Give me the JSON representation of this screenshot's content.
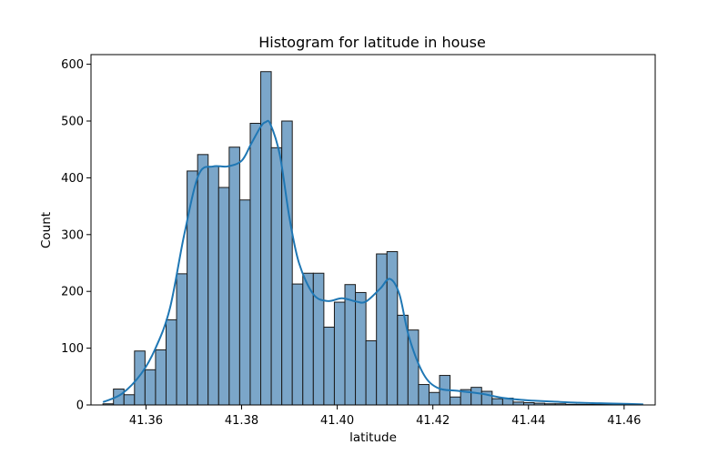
{
  "chart_data": {
    "type": "bar",
    "title": "Histogram for latitude in house",
    "xlabel": "latitude",
    "ylabel": "Count",
    "xlim": [
      41.3485,
      41.4665
    ],
    "ylim": [
      0,
      617
    ],
    "xticks": [
      41.36,
      41.38,
      41.4,
      41.42,
      41.44,
      41.46
    ],
    "xtick_labels": [
      "41.36",
      "41.38",
      "41.40",
      "41.42",
      "41.44",
      "41.46"
    ],
    "yticks": [
      0,
      100,
      200,
      300,
      400,
      500,
      600
    ],
    "ytick_labels": [
      "0",
      "100",
      "200",
      "300",
      "400",
      "500",
      "600"
    ],
    "bin_start": 41.351,
    "bin_width": 0.0022,
    "bar_color": "#7ba6c9",
    "edge_color": "#1a1a1a",
    "kde_color": "#1f77b4",
    "grid": false,
    "legend": "none",
    "values": [
      2,
      28,
      18,
      95,
      62,
      97,
      150,
      231,
      412,
      441,
      420,
      383,
      454,
      361,
      496,
      587,
      453,
      500,
      213,
      232,
      232,
      137,
      181,
      212,
      198,
      113,
      266,
      270,
      158,
      132,
      36,
      22,
      52,
      14,
      27,
      31,
      24,
      11,
      12,
      5,
      4,
      3,
      2,
      2,
      1,
      1,
      1,
      1,
      1,
      1
    ],
    "kde": {
      "x": [
        41.351,
        41.355,
        41.359,
        41.362,
        41.365,
        41.368,
        41.371,
        41.374,
        41.377,
        41.38,
        41.382,
        41.384,
        41.385,
        41.386,
        41.388,
        41.39,
        41.392,
        41.395,
        41.398,
        41.401,
        41.404,
        41.406,
        41.409,
        41.411,
        41.413,
        41.415,
        41.418,
        41.421,
        41.425,
        41.43,
        41.435,
        41.44,
        41.445,
        41.45,
        41.455,
        41.46,
        41.464
      ],
      "y": [
        5,
        20,
        55,
        100,
        170,
        300,
        405,
        420,
        420,
        430,
        460,
        490,
        498,
        495,
        440,
        330,
        250,
        195,
        183,
        188,
        182,
        182,
        205,
        222,
        195,
        120,
        55,
        30,
        25,
        20,
        12,
        8,
        6,
        4,
        3,
        2,
        1
      ]
    }
  }
}
